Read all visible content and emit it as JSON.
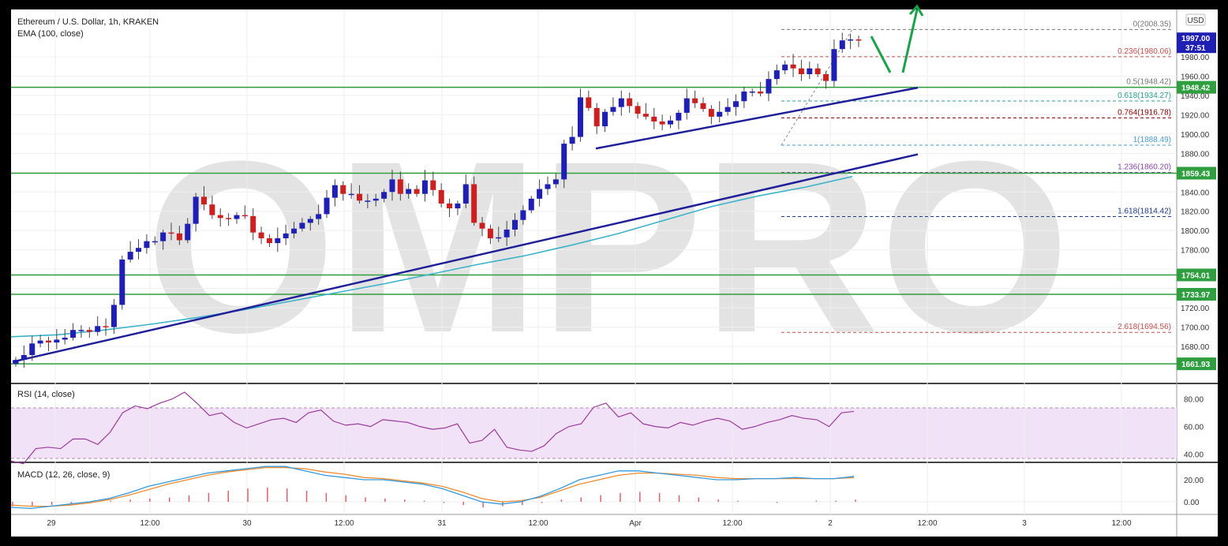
{
  "watermark": "OMPRO",
  "price_panel": {
    "title": "Ethereum / U.S. Dollar, 1h, KRAKEN",
    "ema_label": "EMA (100, close)",
    "currency": "USD",
    "countdown": "37:51",
    "current_price_label": "1997.00",
    "top_tick_partial": "2",
    "y_ticks": [
      "1980.00",
      "1960.00",
      "1940.00",
      "1920.00",
      "1900.00",
      "1880.00",
      "1860.00",
      "1840.00",
      "1820.00",
      "1800.00",
      "1780.00",
      "1720.00",
      "1700.00",
      "1680.00"
    ],
    "level_labels": [
      "1948.42",
      "1859.43",
      "1754.01",
      "1733.97",
      "1661.93"
    ],
    "fib_labels": [
      {
        "text": "0(2008.35)",
        "color": "#777777"
      },
      {
        "text": "0.236(1980.06)",
        "color": "#c0504d"
      },
      {
        "text": "0.5(1948.42)",
        "color": "#777777"
      },
      {
        "text": "0.618(1934.27)",
        "color": "#2aa198"
      },
      {
        "text": "0.764(1916.78)",
        "color": "#8b0000"
      },
      {
        "text": "1(1888.49)",
        "color": "#4a9fd6"
      },
      {
        "text": "1.236(1860.20)",
        "color": "#8e44ad"
      },
      {
        "text": "1.618(1814.42)",
        "color": "#1f3c88"
      },
      {
        "text": "2.618(1694.56)",
        "color": "#c0504d"
      }
    ]
  },
  "rsi_panel": {
    "label": "RSI (14, close)",
    "y_ticks": [
      "80.00",
      "60.00",
      "40.00"
    ]
  },
  "macd_panel": {
    "label": "MACD (12, 26, close, 9)",
    "y_ticks": [
      "20.00",
      "0.00"
    ]
  },
  "time_axis": {
    "labels": [
      "29",
      "12:00",
      "30",
      "12:00",
      "31",
      "12:00",
      "Apr",
      "12:00",
      "2",
      "12:00",
      "3",
      "12:00"
    ]
  },
  "chart_data": {
    "type": "candlestick",
    "title": "Ethereum / U.S. Dollar, 1h, KRAKEN",
    "colors": {
      "up": "#1f1fb4",
      "down": "#cc1f1f",
      "ema": "#3bb3c9",
      "support": "#2e9e3e",
      "trendline": "#1f1f99",
      "arrow": "#1aa34a",
      "rsi": "#9b3c9b",
      "macd": "#3399dd",
      "signal": "#f08c30",
      "hist_up": "#e0606a"
    },
    "candles_close": [
      1666,
      1671,
      1683,
      1686,
      1684,
      1687,
      1689,
      1697,
      1697,
      1695,
      1701,
      1700,
      1723,
      1770,
      1778,
      1782,
      1789,
      1789,
      1798,
      1797,
      1790,
      1807,
      1835,
      1827,
      1816,
      1813,
      1812,
      1816,
      1815,
      1798,
      1792,
      1787,
      1792,
      1797,
      1802,
      1808,
      1812,
      1817,
      1834,
      1847,
      1838,
      1838,
      1831,
      1831,
      1833,
      1840,
      1853,
      1838,
      1843,
      1838,
      1852,
      1842,
      1828,
      1823,
      1828,
      1848,
      1808,
      1802,
      1792,
      1793,
      1801,
      1811,
      1821,
      1833,
      1843,
      1848,
      1853,
      1890,
      1897,
      1938,
      1927,
      1908,
      1923,
      1928,
      1937,
      1929,
      1921,
      1918,
      1913,
      1910,
      1914,
      1922,
      1937,
      1932,
      1926,
      1918,
      1923,
      1928,
      1934,
      1944,
      1944,
      1942,
      1957,
      1966,
      1972,
      1968,
      1962,
      1968,
      1962,
      1955,
      1988,
      1997,
      1998,
      1997
    ],
    "support_levels": [
      1948.42,
      1859.43,
      1754.01,
      1733.97,
      1661.93
    ],
    "fibonacci": [
      {
        "ratio": "0",
        "price": 2008.35
      },
      {
        "ratio": "0.236",
        "price": 1980.06
      },
      {
        "ratio": "0.5",
        "price": 1948.42
      },
      {
        "ratio": "0.618",
        "price": 1934.27
      },
      {
        "ratio": "0.764",
        "price": 1916.78
      },
      {
        "ratio": "1",
        "price": 1888.49
      },
      {
        "ratio": "1.236",
        "price": 1860.2
      },
      {
        "ratio": "1.618",
        "price": 1814.42
      },
      {
        "ratio": "2.618",
        "price": 1694.56
      }
    ],
    "ema_100": [
      1690,
      1692,
      1697,
      1703,
      1710,
      1718,
      1727,
      1736,
      1745,
      1755,
      1765,
      1774,
      1785,
      1797,
      1811,
      1825,
      1836,
      1845,
      1856
    ],
    "rsi": [
      35,
      33,
      44,
      45,
      44,
      51,
      51,
      47,
      56,
      70,
      75,
      73,
      77,
      80,
      85,
      77,
      68,
      70,
      63,
      59,
      62,
      65,
      66,
      63,
      70,
      72,
      64,
      61,
      62,
      60,
      65,
      64,
      63,
      60,
      58,
      59,
      62,
      48,
      50,
      58,
      45,
      43,
      42,
      46,
      55,
      60,
      62,
      74,
      77,
      67,
      70,
      62,
      60,
      59,
      63,
      61,
      64,
      66,
      64,
      58,
      60,
      63,
      65,
      68,
      66,
      65,
      60,
      70,
      71
    ],
    "macd_line": [
      -5,
      -6,
      -4,
      -2,
      0,
      3,
      8,
      14,
      18,
      22,
      26,
      28,
      30,
      32,
      32,
      28,
      24,
      22,
      20,
      20,
      18,
      16,
      12,
      6,
      0,
      -2,
      0,
      5,
      12,
      20,
      24,
      28,
      28,
      26,
      24,
      22,
      20,
      20,
      21,
      21,
      22,
      21,
      21,
      23
    ],
    "macd_signal": [
      -3,
      -4,
      -4,
      -3,
      -1,
      2,
      6,
      11,
      16,
      20,
      24,
      27,
      29,
      31,
      31,
      30,
      27,
      25,
      22,
      21,
      19,
      17,
      14,
      9,
      3,
      0,
      1,
      4,
      10,
      16,
      20,
      24,
      26,
      26,
      25,
      24,
      22,
      21,
      21,
      21,
      21,
      21,
      21,
      22
    ],
    "macd_hist": [
      -4,
      -4,
      -3,
      -2,
      -1,
      1,
      2,
      3,
      4,
      6,
      8,
      10,
      12,
      13,
      12,
      10,
      8,
      6,
      4,
      3,
      2,
      1,
      -1,
      -3,
      -5,
      -4,
      -3,
      -1,
      2,
      4,
      6,
      8,
      9,
      8,
      6,
      4,
      2,
      1,
      0,
      -1,
      0,
      1,
      1,
      2
    ]
  }
}
